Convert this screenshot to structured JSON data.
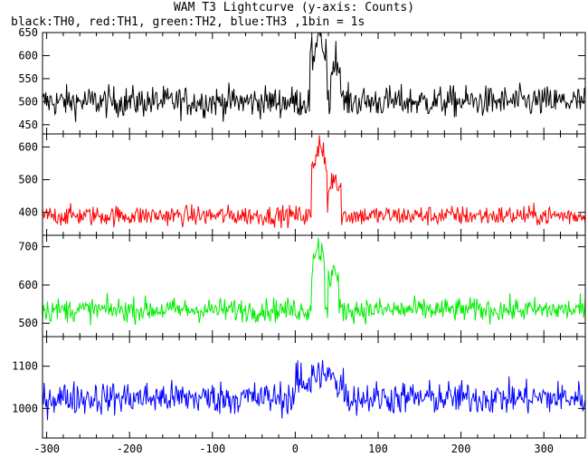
{
  "chart_data": {
    "type": "line",
    "title": "WAM T3 Lightcurve (y-axis: Counts)",
    "subtitle": "black:TH0, red:TH1, green:TH2, blue:TH3 ,1bin = 1s",
    "xlim": [
      -305,
      350
    ],
    "x_ticks": [
      -300,
      -200,
      -100,
      0,
      100,
      200,
      300
    ],
    "shared_x_axis": true,
    "grid": false,
    "panels": [
      {
        "series_name": "TH0",
        "color": "#000000",
        "ylim": [
          430,
          650
        ],
        "y_ticks": [
          450,
          500,
          550,
          600,
          650
        ],
        "baseline": 500,
        "noise": 24,
        "features": [
          {
            "x": [
              18,
              38
            ],
            "peak_value": 640
          },
          {
            "x": [
              43,
              55
            ],
            "peak_value": 600
          }
        ]
      },
      {
        "series_name": "TH1",
        "color": "#ff0000",
        "ylim": [
          330,
          640
        ],
        "y_ticks": [
          400,
          500,
          600
        ],
        "baseline": 390,
        "noise": 22,
        "features": [
          {
            "x": [
              20,
              38
            ],
            "peak_value": 620
          },
          {
            "x": [
              40,
              55
            ],
            "peak_value": 520
          }
        ]
      },
      {
        "series_name": "TH2",
        "color": "#00ee00",
        "ylim": [
          465,
          730
        ],
        "y_ticks": [
          500,
          600,
          700
        ],
        "baseline": 535,
        "noise": 22,
        "features": [
          {
            "x": [
              20,
              35
            ],
            "peak_value": 720
          },
          {
            "x": [
              40,
              52
            ],
            "peak_value": 650
          }
        ]
      },
      {
        "series_name": "TH3",
        "color": "#0000ff",
        "ylim": [
          930,
          1170
        ],
        "y_ticks": [
          1000,
          1100
        ],
        "baseline": 1025,
        "noise": 28,
        "features": [
          {
            "x": [
              0,
              60
            ],
            "peak_value": 1080
          }
        ]
      }
    ]
  }
}
